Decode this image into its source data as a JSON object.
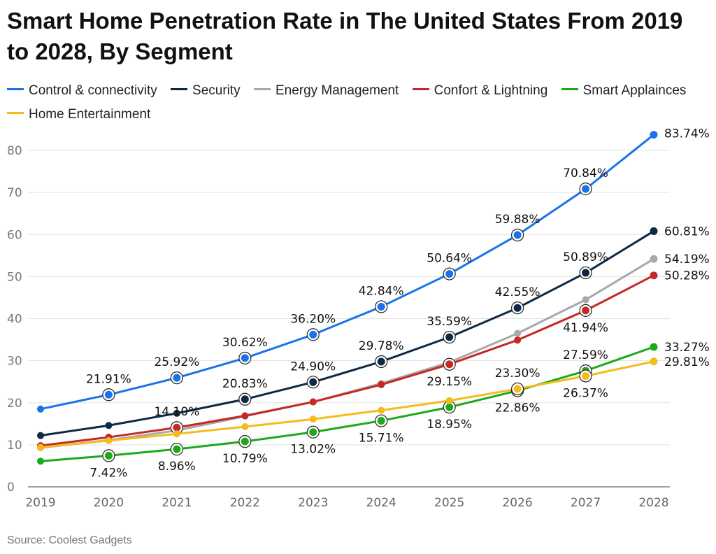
{
  "chart_data": {
    "type": "line",
    "title": "Smart Home Penetration Rate in The United States From 2019 to 2028, By Segment",
    "xlabel": "",
    "ylabel": "",
    "ylim": [
      0,
      85
    ],
    "yticks": [
      0,
      10,
      20,
      30,
      40,
      50,
      60,
      70,
      80
    ],
    "grid": true,
    "legend_position": "top",
    "categories": [
      "2019",
      "2020",
      "2021",
      "2022",
      "2023",
      "2024",
      "2025",
      "2026",
      "2027",
      "2028"
    ],
    "series": [
      {
        "name": "Control & connectivity",
        "color": "#1a73e8",
        "values": [
          18.5,
          21.91,
          25.92,
          30.62,
          36.2,
          42.84,
          50.64,
          59.88,
          70.84,
          83.74
        ],
        "labels": [
          null,
          "21.91%",
          "25.92%",
          "30.62%",
          "36.20%",
          "42.84%",
          "50.64%",
          "59.88%",
          "70.84%",
          "83.74%"
        ]
      },
      {
        "name": "Security",
        "color": "#0d2a44",
        "values": [
          12.2,
          14.6,
          17.5,
          20.83,
          24.9,
          29.78,
          35.59,
          42.55,
          50.89,
          60.81
        ],
        "labels": [
          null,
          null,
          null,
          "20.83%",
          "24.90%",
          "29.78%",
          "35.59%",
          "42.55%",
          "50.89%",
          "60.81%"
        ]
      },
      {
        "name": "Energy Management",
        "color": "#a8a8a8",
        "values": [
          9.3,
          11.1,
          13.4,
          16.8,
          20.2,
          24.6,
          29.6,
          36.5,
          44.5,
          54.19
        ],
        "labels": [
          null,
          null,
          null,
          null,
          null,
          null,
          null,
          null,
          null,
          "54.19%"
        ]
      },
      {
        "name": "Confort & Lightning",
        "color": "#c62828",
        "values": [
          9.8,
          11.8,
          14.1,
          16.9,
          20.2,
          24.3,
          29.15,
          34.9,
          41.94,
          50.28
        ],
        "labels": [
          null,
          null,
          "14.10%",
          null,
          null,
          null,
          "29.15%",
          null,
          "41.94%",
          "50.28%"
        ]
      },
      {
        "name": "Smart Applainces",
        "color": "#1aaa1a",
        "values": [
          6.1,
          7.42,
          8.96,
          10.79,
          13.02,
          15.71,
          18.95,
          22.86,
          27.59,
          33.27
        ],
        "labels": [
          null,
          "7.42%",
          "8.96%",
          "10.79%",
          "13.02%",
          "15.71%",
          "18.95%",
          "22.86%",
          "27.59%",
          "33.27%"
        ]
      },
      {
        "name": "Home Entertainment",
        "color": "#f4bc1b",
        "values": [
          9.4,
          11.0,
          12.6,
          14.3,
          16.1,
          18.2,
          20.5,
          23.3,
          26.37,
          29.81
        ],
        "labels": [
          null,
          null,
          null,
          null,
          null,
          null,
          null,
          "23.30%",
          "26.37%",
          "29.81%"
        ]
      }
    ]
  },
  "source": "Source: Coolest Gadgets"
}
